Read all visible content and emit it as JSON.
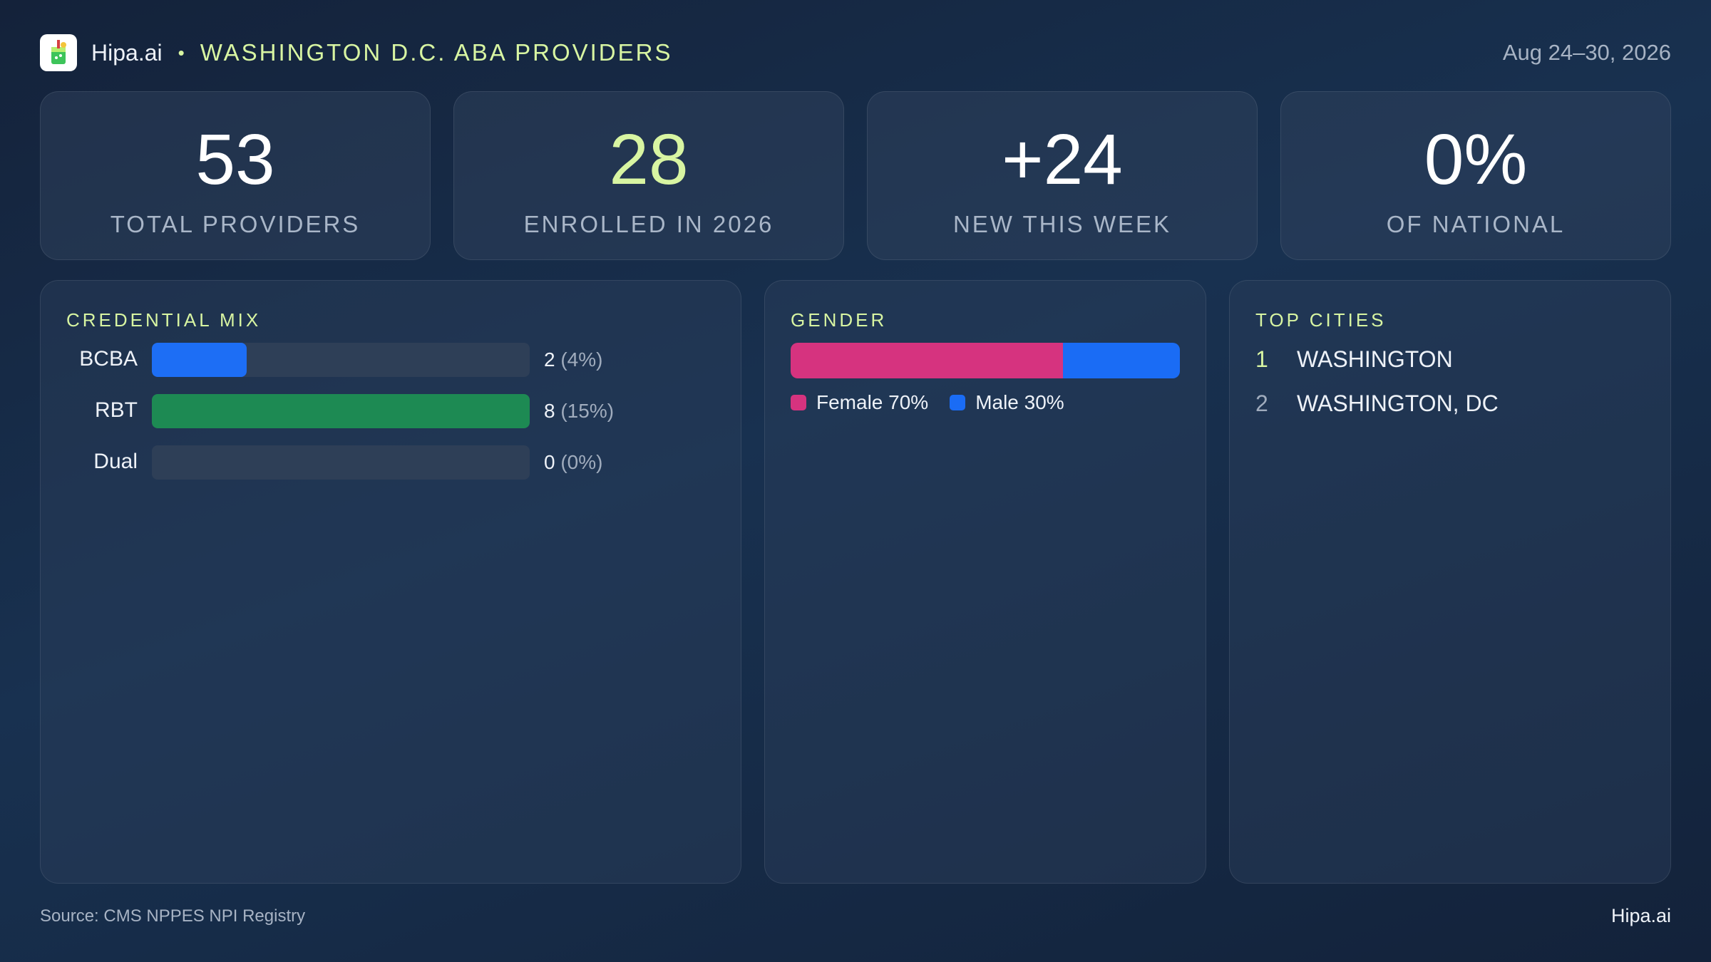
{
  "header": {
    "brand": "Hipa.ai",
    "separator": "•",
    "title": "WASHINGTON D.C. ABA PROVIDERS",
    "date_range": "Aug 24–30, 2026",
    "logo_icon": "drink-cup-icon"
  },
  "stats": [
    {
      "value": "53",
      "label": "TOTAL PROVIDERS"
    },
    {
      "value": "28",
      "label": "ENROLLED IN 2026"
    },
    {
      "value": "+24",
      "label": "NEW THIS WEEK"
    },
    {
      "value": "0%",
      "label": "OF NATIONAL"
    }
  ],
  "credential_mix": {
    "title": "CREDENTIAL MIX",
    "rows": [
      {
        "label": "BCBA",
        "count": "2",
        "pct": "(4%)",
        "fill_fraction": 0.25,
        "color": "#1d6ef5"
      },
      {
        "label": "RBT",
        "count": "8",
        "pct": "(15%)",
        "fill_fraction": 1.0,
        "color": "#1d8a53"
      },
      {
        "label": "Dual",
        "count": "0",
        "pct": "(0%)",
        "fill_fraction": 0.0,
        "color": "#1d6ef5"
      }
    ]
  },
  "gender": {
    "title": "GENDER",
    "segments": [
      {
        "label": "Female 70%",
        "fraction": 0.7,
        "color": "#d6337f"
      },
      {
        "label": "Male 30%",
        "fraction": 0.3,
        "color": "#1a6cf5"
      }
    ]
  },
  "top_cities": {
    "title": "TOP CITIES",
    "items": [
      {
        "rank": "1",
        "name": "WASHINGTON"
      },
      {
        "rank": "2",
        "name": "WASHINGTON, DC"
      }
    ]
  },
  "footer": {
    "source": "Source: CMS NPPES NPI Registry",
    "brand": "Hipa.ai"
  }
}
